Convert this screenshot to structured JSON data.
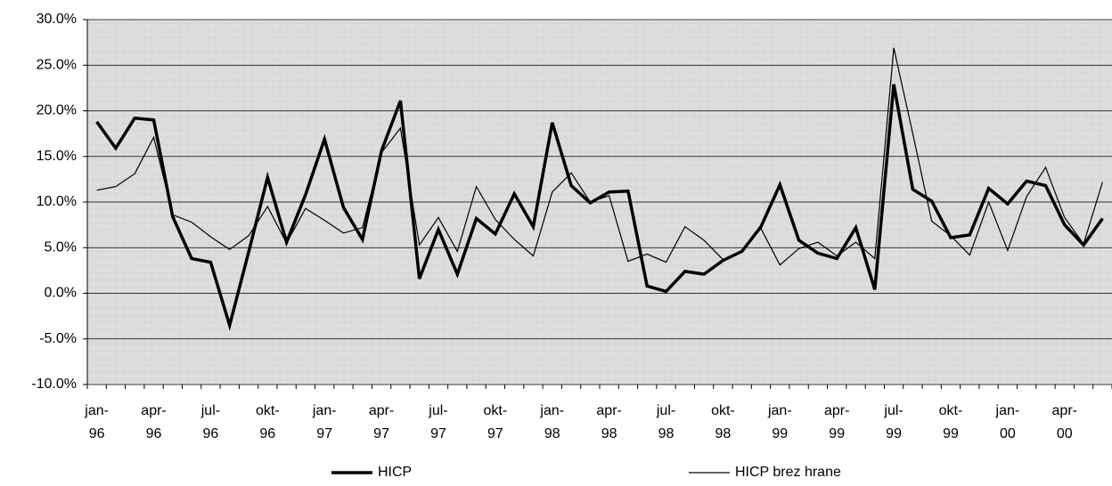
{
  "chart_data": {
    "type": "line",
    "categories": [
      "jan-96",
      null,
      null,
      "apr-96",
      null,
      null,
      "jul-96",
      null,
      null,
      "okt-96",
      null,
      null,
      "jan-97",
      null,
      null,
      "apr-97",
      null,
      null,
      "jul-97",
      null,
      null,
      "okt-97",
      null,
      null,
      "jan-98",
      null,
      null,
      "apr-98",
      null,
      null,
      "jul-98",
      null,
      null,
      "okt-98",
      null,
      null,
      "jan-99",
      null,
      null,
      "apr-99",
      null,
      null,
      "jul-99",
      null,
      null,
      "okt-99",
      null,
      null,
      "jan-00",
      null,
      null,
      "apr-00",
      null,
      null
    ],
    "series": [
      {
        "name": "HICP",
        "color": "#000000",
        "width": 3.5,
        "values": [
          18.8,
          15.9,
          19.2,
          19.0,
          8.4,
          3.8,
          3.4,
          -3.5,
          4.5,
          12.7,
          5.6,
          10.8,
          16.9,
          9.4,
          5.9,
          15.6,
          21.1,
          1.6,
          7.0,
          2.1,
          8.2,
          6.5,
          10.9,
          7.3,
          18.7,
          11.8,
          9.9,
          11.1,
          11.2,
          0.8,
          0.2,
          2.4,
          2.1,
          3.6,
          4.6,
          7.3,
          11.9,
          5.8,
          4.4,
          3.8,
          7.2,
          0.4,
          22.9,
          11.4,
          10.1,
          6.1,
          6.4,
          11.5,
          9.8,
          12.3,
          11.8,
          7.5,
          5.3,
          8.2
        ]
      },
      {
        "name": "HICP brez hrane",
        "color": "#000000",
        "width": 1.2,
        "values": [
          11.3,
          11.7,
          13.1,
          17.1,
          8.6,
          7.8,
          6.2,
          4.8,
          6.3,
          9.5,
          5.5,
          9.3,
          8.0,
          6.6,
          7.2,
          15.4,
          18.1,
          5.3,
          8.3,
          4.6,
          11.7,
          8.1,
          5.9,
          4.1,
          11.1,
          13.2,
          10.0,
          10.7,
          3.5,
          4.3,
          3.4,
          7.3,
          5.8,
          3.7,
          4.6,
          7.1,
          3.1,
          4.9,
          5.6,
          4.1,
          5.6,
          3.8,
          26.9,
          17.5,
          7.9,
          6.3,
          4.2,
          10.0,
          4.7,
          10.6,
          13.8,
          8.3,
          5.4,
          12.2
        ]
      }
    ],
    "ylim": [
      -10,
      30
    ],
    "yticks": [
      {
        "value": -10,
        "label": "-10.0%"
      },
      {
        "value": -5,
        "label": "-5.0%"
      },
      {
        "value": 0,
        "label": "0.0%"
      },
      {
        "value": 5,
        "label": "5.0%"
      },
      {
        "value": 10,
        "label": "10.0%"
      },
      {
        "value": 15,
        "label": "15.0%"
      },
      {
        "value": 20,
        "label": "20.0%"
      },
      {
        "value": 25,
        "label": "25.0%"
      },
      {
        "value": 30,
        "label": "30.0%"
      }
    ],
    "grid": true,
    "legend": "bottom"
  }
}
